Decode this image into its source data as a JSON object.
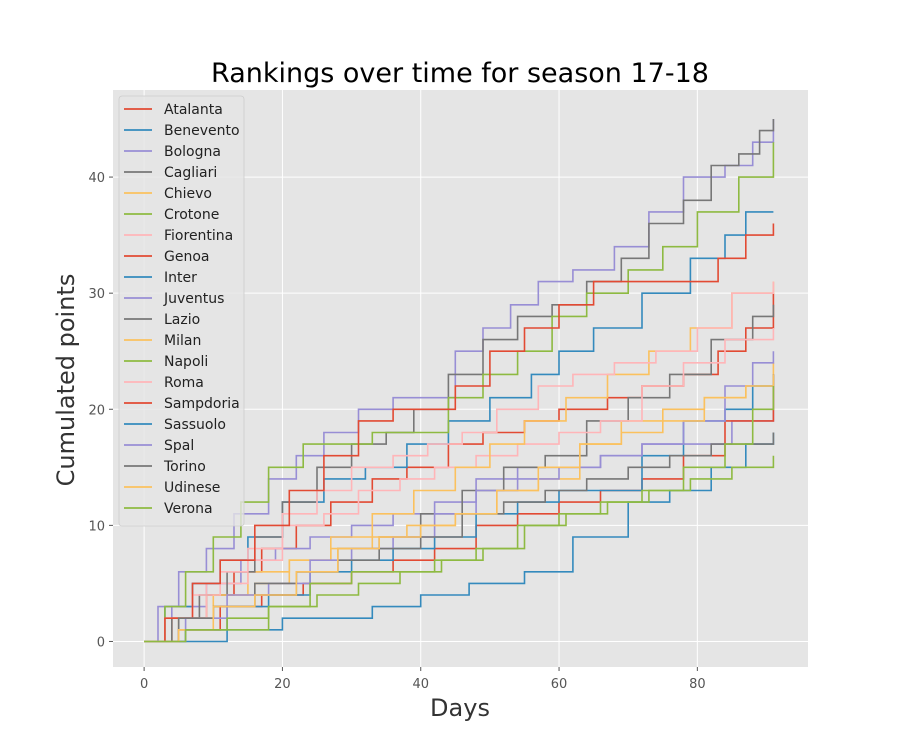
{
  "chart_data": {
    "type": "line",
    "title": "Rankings over time for season 17-18",
    "xlabel": "Days",
    "ylabel": "Cumulated points",
    "xlim": [
      -4.5,
      96
    ],
    "ylim": [
      -2.2,
      47.5
    ],
    "xticks": [
      0,
      20,
      40,
      60,
      80
    ],
    "yticks": [
      0,
      10,
      20,
      30,
      40
    ],
    "grid": true,
    "legend_position": "upper-left",
    "series": [
      {
        "name": "Atalanta",
        "color": "#E24A33",
        "x": [
          0,
          4,
          9,
          13,
          17,
          22,
          27,
          33,
          38,
          44,
          49,
          55,
          60,
          67,
          72,
          78,
          83,
          87,
          91
        ],
        "y": [
          0,
          2,
          4,
          6,
          8,
          10,
          12,
          14,
          15,
          17,
          18,
          19,
          20,
          21,
          22,
          23,
          25,
          27,
          30
        ]
      },
      {
        "name": "Benevento",
        "color": "#348ABD",
        "x": [
          0,
          12,
          20,
          25,
          33,
          40,
          47,
          55,
          62,
          70,
          76,
          82,
          87,
          91
        ],
        "y": [
          0,
          1,
          2,
          2,
          3,
          4,
          5,
          6,
          9,
          12,
          13,
          15,
          17,
          18
        ]
      },
      {
        "name": "Bologna",
        "color": "#988ED5",
        "x": [
          0,
          4,
          9,
          14,
          19,
          24,
          30,
          36,
          42,
          48,
          54,
          60,
          66,
          72,
          79,
          85,
          91
        ],
        "y": [
          0,
          3,
          5,
          7,
          8,
          9,
          10,
          11,
          12,
          14,
          15,
          15,
          16,
          17,
          17,
          19,
          22
        ]
      },
      {
        "name": "Cagliari",
        "color": "#777777",
        "x": [
          0,
          5,
          10,
          16,
          22,
          28,
          34,
          40,
          46,
          52,
          58,
          64,
          70,
          76,
          82,
          88,
          91
        ],
        "y": [
          0,
          2,
          3,
          4,
          6,
          8,
          9,
          11,
          13,
          15,
          16,
          19,
          21,
          23,
          26,
          28,
          29
        ]
      },
      {
        "name": "Chievo",
        "color": "#FBC15E",
        "x": [
          0,
          4,
          9,
          15,
          21,
          27,
          33,
          38,
          45,
          51,
          57,
          63,
          69,
          75,
          81,
          87,
          91
        ],
        "y": [
          0,
          2,
          4,
          6,
          7,
          8,
          9,
          10,
          11,
          13,
          14,
          17,
          19,
          20,
          21,
          22,
          24
        ]
      },
      {
        "name": "Crotone",
        "color": "#8EBA42",
        "x": [
          0,
          6,
          12,
          18,
          25,
          31,
          37,
          43,
          49,
          55,
          61,
          67,
          73,
          79,
          85,
          91
        ],
        "y": [
          0,
          1,
          1,
          3,
          4,
          5,
          6,
          7,
          8,
          10,
          11,
          12,
          13,
          14,
          15,
          16
        ]
      },
      {
        "name": "Fiorentina",
        "color": "#FFB5B8",
        "x": [
          0,
          4,
          9,
          15,
          20,
          26,
          31,
          37,
          42,
          48,
          54,
          60,
          66,
          72,
          78,
          84,
          91
        ],
        "y": [
          0,
          2,
          5,
          7,
          10,
          11,
          13,
          14,
          15,
          16,
          17,
          18,
          19,
          22,
          24,
          26,
          27
        ]
      },
      {
        "name": "Genoa",
        "color": "#E24A33",
        "x": [
          0,
          5,
          11,
          17,
          23,
          30,
          36,
          42,
          48,
          54,
          60,
          66,
          72,
          78,
          84,
          91
        ],
        "y": [
          0,
          1,
          3,
          4,
          5,
          6,
          7,
          8,
          10,
          11,
          12,
          13,
          14,
          16,
          19,
          23
        ]
      },
      {
        "name": "Inter",
        "color": "#348ABD",
        "x": [
          0,
          3,
          7,
          11,
          15,
          20,
          26,
          32,
          38,
          44,
          50,
          56,
          60,
          65,
          72,
          79,
          84,
          87,
          91
        ],
        "y": [
          0,
          3,
          5,
          7,
          9,
          12,
          14,
          15,
          17,
          19,
          21,
          23,
          25,
          27,
          30,
          33,
          35,
          37,
          37
        ]
      },
      {
        "name": "Juventus",
        "color": "#988ED5",
        "x": [
          0,
          2,
          5,
          9,
          13,
          18,
          22,
          26,
          31,
          36,
          41,
          45,
          49,
          53,
          57,
          62,
          68,
          73,
          78,
          84,
          88,
          91
        ],
        "y": [
          0,
          3,
          6,
          8,
          11,
          14,
          16,
          18,
          20,
          21,
          21,
          25,
          27,
          29,
          31,
          32,
          34,
          37,
          40,
          41,
          43,
          45
        ]
      },
      {
        "name": "Lazio",
        "color": "#777777",
        "x": [
          0,
          4,
          8,
          12,
          16,
          20,
          25,
          30,
          35,
          39,
          44,
          49,
          54,
          59,
          64,
          69,
          73,
          78,
          82,
          86,
          89,
          91
        ],
        "y": [
          0,
          2,
          4,
          6,
          9,
          12,
          15,
          17,
          18,
          20,
          23,
          26,
          28,
          29,
          31,
          33,
          36,
          38,
          41,
          42,
          44,
          45
        ]
      },
      {
        "name": "Milan",
        "color": "#FBC15E",
        "x": [
          0,
          5,
          10,
          16,
          21,
          27,
          33,
          39,
          45,
          50,
          55,
          61,
          67,
          73,
          79,
          85,
          91
        ],
        "y": [
          0,
          2,
          4,
          5,
          7,
          9,
          11,
          13,
          15,
          17,
          19,
          21,
          23,
          25,
          27,
          30,
          31
        ]
      },
      {
        "name": "Napoli",
        "color": "#8EBA42",
        "x": [
          0,
          3,
          6,
          10,
          14,
          18,
          23,
          28,
          33,
          39,
          44,
          49,
          54,
          59,
          64,
          70,
          75,
          80,
          86,
          91
        ],
        "y": [
          0,
          3,
          6,
          9,
          12,
          15,
          17,
          17,
          18,
          18,
          21,
          23,
          25,
          28,
          30,
          32,
          34,
          37,
          40,
          43
        ]
      },
      {
        "name": "Roma",
        "color": "#FFB5B8",
        "x": [
          0,
          3,
          7,
          11,
          15,
          20,
          25,
          30,
          36,
          41,
          46,
          51,
          57,
          62,
          68,
          74,
          80,
          85,
          91
        ],
        "y": [
          0,
          2,
          4,
          6,
          8,
          11,
          13,
          15,
          16,
          17,
          18,
          20,
          22,
          23,
          24,
          25,
          27,
          30,
          31
        ]
      },
      {
        "name": "Sampdoria",
        "color": "#E24A33",
        "x": [
          0,
          3,
          7,
          11,
          16,
          21,
          26,
          31,
          36,
          40,
          45,
          50,
          55,
          60,
          65,
          71,
          77,
          83,
          87,
          91
        ],
        "y": [
          0,
          2,
          5,
          7,
          10,
          13,
          16,
          19,
          20,
          20,
          22,
          25,
          27,
          29,
          31,
          31,
          31,
          33,
          35,
          36
        ]
      },
      {
        "name": "Sassuolo",
        "color": "#348ABD",
        "x": [
          0,
          6,
          12,
          18,
          24,
          30,
          36,
          42,
          48,
          54,
          60,
          66,
          72,
          78,
          84,
          88,
          91
        ],
        "y": [
          0,
          1,
          3,
          4,
          6,
          7,
          8,
          9,
          11,
          12,
          13,
          13,
          16,
          19,
          20,
          22,
          23
        ]
      },
      {
        "name": "Spal",
        "color": "#988ED5",
        "x": [
          0,
          6,
          12,
          18,
          24,
          30,
          36,
          42,
          48,
          54,
          60,
          66,
          72,
          78,
          84,
          88,
          91
        ],
        "y": [
          0,
          2,
          4,
          5,
          7,
          8,
          9,
          11,
          13,
          14,
          15,
          16,
          17,
          19,
          22,
          24,
          25
        ]
      },
      {
        "name": "Torino",
        "color": "#777777",
        "x": [
          0,
          5,
          10,
          16,
          22,
          28,
          34,
          40,
          46,
          52,
          58,
          64,
          70,
          76,
          82,
          88,
          91
        ],
        "y": [
          0,
          2,
          3,
          5,
          6,
          7,
          8,
          9,
          11,
          12,
          13,
          14,
          15,
          16,
          17,
          17,
          18
        ]
      },
      {
        "name": "Udinese",
        "color": "#FBC15E",
        "x": [
          0,
          5,
          10,
          16,
          22,
          28,
          34,
          40,
          45,
          51,
          57,
          63,
          69,
          75,
          81,
          87,
          91
        ],
        "y": [
          0,
          1,
          3,
          4,
          6,
          8,
          9,
          10,
          11,
          13,
          15,
          17,
          18,
          19,
          21,
          22,
          23
        ]
      },
      {
        "name": "Verona",
        "color": "#8EBA42",
        "x": [
          0,
          6,
          12,
          18,
          24,
          30,
          36,
          42,
          48,
          54,
          60,
          66,
          72,
          78,
          84,
          88,
          91
        ],
        "y": [
          0,
          1,
          2,
          3,
          5,
          6,
          6,
          7,
          8,
          10,
          11,
          12,
          13,
          15,
          17,
          20,
          22
        ]
      }
    ]
  }
}
